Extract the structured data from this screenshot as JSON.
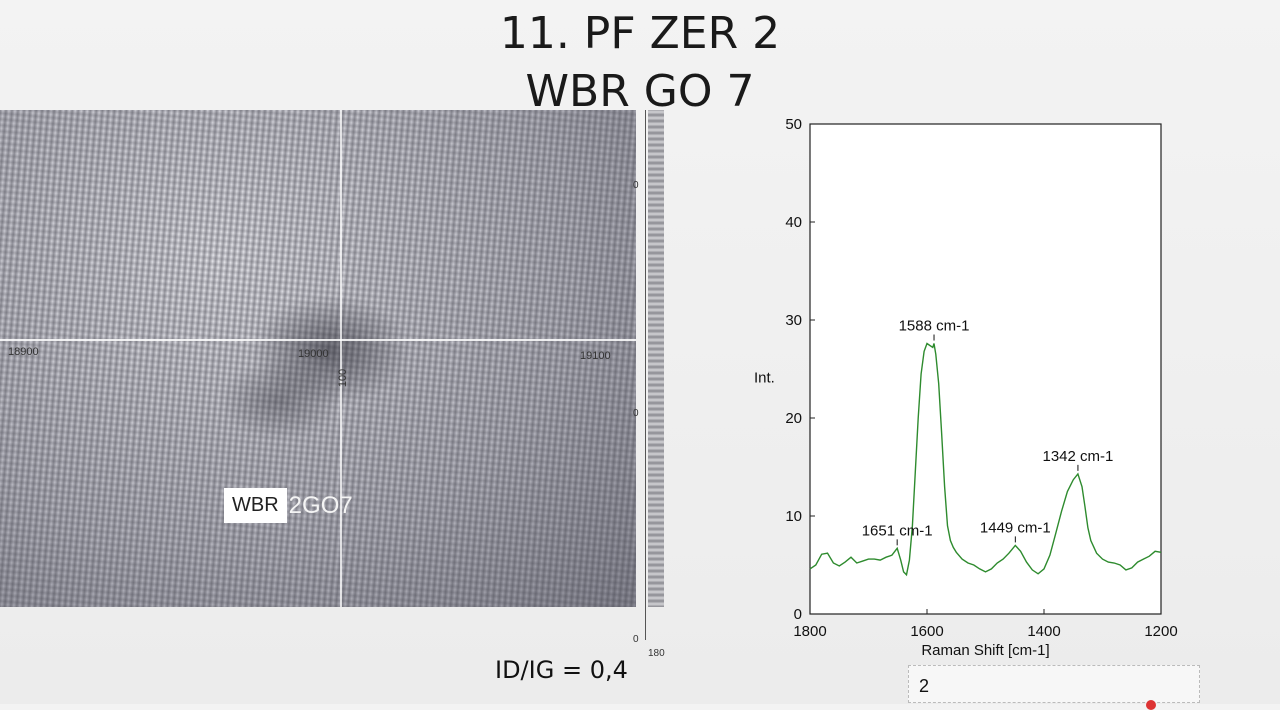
{
  "slide": {
    "title_line1": "11. PF ZER 2",
    "title_line2": "WBR GO 7",
    "id_ig": "ID/IG = 0,4",
    "page_number": "2"
  },
  "photo": {
    "x_ticks": [
      "18900",
      "19000",
      "19100"
    ],
    "y_tick": "100",
    "label_boxed": "WBR",
    "label_rest": "2GO7",
    "strip_ticks": [
      "0",
      "0",
      "0",
      "0",
      "180"
    ]
  },
  "chart_data": {
    "type": "line",
    "xlabel": "Raman Shift [cm-1]",
    "ylabel": "Int.",
    "xlim": [
      1800,
      1200
    ],
    "ylim": [
      0,
      50
    ],
    "x_ticks": [
      1800,
      1600,
      1400,
      1200
    ],
    "y_ticks": [
      0,
      10,
      20,
      30,
      40,
      50
    ],
    "grid": false,
    "color": "#2e8b2e",
    "series": [
      {
        "x": [
          1800,
          1790,
          1780,
          1770,
          1760,
          1750,
          1740,
          1730,
          1720,
          1710,
          1700,
          1690,
          1680,
          1670,
          1660,
          1651,
          1645,
          1640,
          1635,
          1630,
          1625,
          1620,
          1615,
          1610,
          1605,
          1600,
          1595,
          1590,
          1588,
          1585,
          1580,
          1575,
          1570,
          1565,
          1560,
          1555,
          1550,
          1540,
          1530,
          1520,
          1510,
          1500,
          1490,
          1480,
          1470,
          1460,
          1449,
          1440,
          1430,
          1420,
          1410,
          1400,
          1390,
          1380,
          1370,
          1360,
          1350,
          1342,
          1335,
          1330,
          1325,
          1320,
          1310,
          1300,
          1290,
          1280,
          1270,
          1260,
          1250,
          1240,
          1230,
          1220,
          1210,
          1200
        ],
        "y": [
          4.6,
          5.0,
          6.1,
          6.2,
          5.2,
          4.9,
          5.3,
          5.8,
          5.2,
          5.4,
          5.6,
          5.6,
          5.5,
          5.8,
          6.0,
          6.7,
          5.5,
          4.3,
          4.0,
          5.5,
          9.0,
          14.5,
          20.0,
          24.5,
          26.8,
          27.6,
          27.4,
          27.2,
          27.6,
          26.5,
          23.5,
          18.5,
          13.0,
          9.0,
          7.5,
          6.8,
          6.3,
          5.6,
          5.2,
          5.0,
          4.6,
          4.3,
          4.6,
          5.2,
          5.6,
          6.2,
          7.0,
          6.4,
          5.3,
          4.5,
          4.1,
          4.6,
          6.0,
          8.2,
          10.5,
          12.5,
          13.7,
          14.3,
          13.0,
          11.0,
          8.8,
          7.5,
          6.2,
          5.6,
          5.3,
          5.2,
          5.0,
          4.5,
          4.7,
          5.3,
          5.6,
          5.9,
          6.4,
          6.3
        ]
      }
    ],
    "annotations": [
      {
        "text": "1588 cm-1",
        "x": 1588,
        "y": 27.6
      },
      {
        "text": "1342 cm-1",
        "x": 1342,
        "y": 14.3
      },
      {
        "text": "1651 cm-1",
        "x": 1651,
        "y": 6.7
      },
      {
        "text": "1449 cm-1",
        "x": 1449,
        "y": 7.0
      }
    ]
  }
}
